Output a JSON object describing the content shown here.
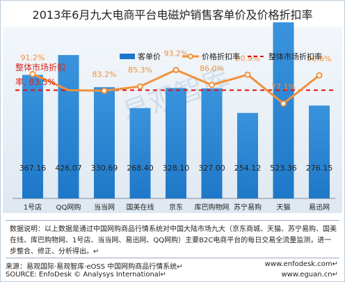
{
  "chart_data": {
    "type": "bar+line",
    "title": "2013年6月九大电商平台电磁炉销售客单价及价格折扣率",
    "categories": [
      "1号店",
      "QQ网购",
      "当当网",
      "国美在线",
      "京东",
      "库巴购物网",
      "苏宁易购",
      "天猫",
      "易迅网"
    ],
    "series": [
      {
        "name": "客单价",
        "type": "bar",
        "values": [
          367.16,
          426.07,
          330.69,
          268.4,
          328.1,
          327.0,
          254.12,
          523.36,
          276.15
        ],
        "labels": [
          "367.16",
          "426.07",
          "330.69",
          "268.40",
          "328.10",
          "327.00",
          "254.12",
          "523.36",
          "276.15"
        ]
      },
      {
        "name": "价格折扣率",
        "type": "line",
        "values": [
          91.2,
          83.5,
          83.2,
          85.3,
          93.2,
          86.0,
          90.9,
          77.1,
          90.6
        ],
        "labels": [
          "91.2%",
          "",
          "83.2%",
          "85.3%",
          "93.2%",
          "86.0%",
          "90.9%",
          "77.1%",
          "90.6%"
        ]
      },
      {
        "name": "整体市场折扣率",
        "type": "reference",
        "value": 83.5
      }
    ],
    "annotation": {
      "line1": "整体市场折扣",
      "line2": "率, 83.5%"
    },
    "colors": {
      "bar": "#1e78c8",
      "line": "#f0913a",
      "reference": "#e01010",
      "annotation": "#d9261c",
      "rate_label": "#f0913a"
    },
    "grid": false,
    "legend_position": "top"
  },
  "watermark": "易观智库",
  "note": "数据说明：以上数据是通过中国网购商品行情系统对中国大陆市场九大（京东商城、天猫、苏宁易购、国美在线、库巴购物网、1号店、当当网、易迅网、QQ网购）主要B2C电商平台的每日交易全流量监测，进一步整合、修正、分析得出。↵",
  "source_line1": "来源：易观国际·易观智库·eOSS 中国网购商品行情系统↵",
  "source_line1_right": "www.enfodesk.com↵",
  "source_line2": "SOURCE: EnfoDesk © Analysys International↵",
  "source_line2_right": "www.eguan.cn↵"
}
